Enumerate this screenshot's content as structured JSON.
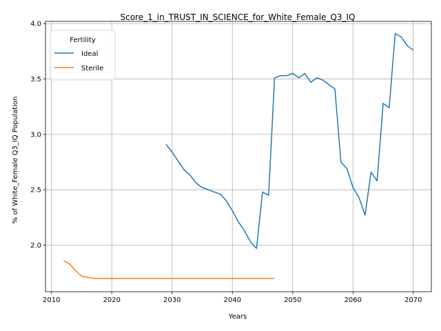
{
  "chart_data": {
    "type": "line",
    "title": "Score_1_in_TRUST_IN_SCIENCE_for_White_Female_Q3_IQ",
    "xlabel": "Years",
    "ylabel": "% of White_Female Q3_IQ Population",
    "xlim": [
      2009,
      2073
    ],
    "ylim": [
      1.58,
      4.02
    ],
    "xticks": [
      2010,
      2020,
      2030,
      2040,
      2050,
      2060,
      2070
    ],
    "yticks": [
      2.0,
      2.5,
      3.0,
      3.5,
      4.0
    ],
    "grid": true,
    "legend": {
      "title": "Fertility",
      "placement": "top-left"
    },
    "series": [
      {
        "name": "Ideal",
        "color": "#1f77b4",
        "points": [
          [
            2029,
            2.91
          ],
          [
            2030,
            2.84
          ],
          [
            2031,
            2.76
          ],
          [
            2032,
            2.68
          ],
          [
            2033,
            2.63
          ],
          [
            2034,
            2.56
          ],
          [
            2035,
            2.52
          ],
          [
            2036,
            2.5
          ],
          [
            2037,
            2.48
          ],
          [
            2038,
            2.46
          ],
          [
            2039,
            2.4
          ],
          [
            2040,
            2.31
          ],
          [
            2041,
            2.21
          ],
          [
            2042,
            2.13
          ],
          [
            2043,
            2.03
          ],
          [
            2044,
            1.97
          ],
          [
            2045,
            2.48
          ],
          [
            2046,
            2.45
          ],
          [
            2047,
            3.51
          ],
          [
            2048,
            3.53
          ],
          [
            2049,
            3.53
          ],
          [
            2050,
            3.55
          ],
          [
            2051,
            3.51
          ],
          [
            2052,
            3.55
          ],
          [
            2053,
            3.47
          ],
          [
            2054,
            3.51
          ],
          [
            2055,
            3.49
          ],
          [
            2056,
            3.45
          ],
          [
            2057,
            3.41
          ],
          [
            2058,
            2.75
          ],
          [
            2059,
            2.69
          ],
          [
            2060,
            2.52
          ],
          [
            2061,
            2.43
          ],
          [
            2062,
            2.27
          ],
          [
            2063,
            2.66
          ],
          [
            2064,
            2.58
          ],
          [
            2065,
            3.28
          ],
          [
            2066,
            3.24
          ],
          [
            2067,
            3.91
          ],
          [
            2068,
            3.88
          ],
          [
            2069,
            3.8
          ],
          [
            2070,
            3.76
          ]
        ]
      },
      {
        "name": "Sterile",
        "color": "#ff7f0e",
        "points": [
          [
            2012,
            1.86
          ],
          [
            2013,
            1.83
          ],
          [
            2014,
            1.77
          ],
          [
            2015,
            1.72
          ],
          [
            2016,
            1.71
          ],
          [
            2017,
            1.7
          ],
          [
            2018,
            1.7
          ],
          [
            2019,
            1.7
          ],
          [
            2020,
            1.7
          ],
          [
            2022,
            1.7
          ],
          [
            2025,
            1.7
          ],
          [
            2030,
            1.7
          ],
          [
            2035,
            1.7
          ],
          [
            2040,
            1.7
          ],
          [
            2045,
            1.7
          ],
          [
            2047,
            1.7
          ]
        ]
      }
    ]
  }
}
